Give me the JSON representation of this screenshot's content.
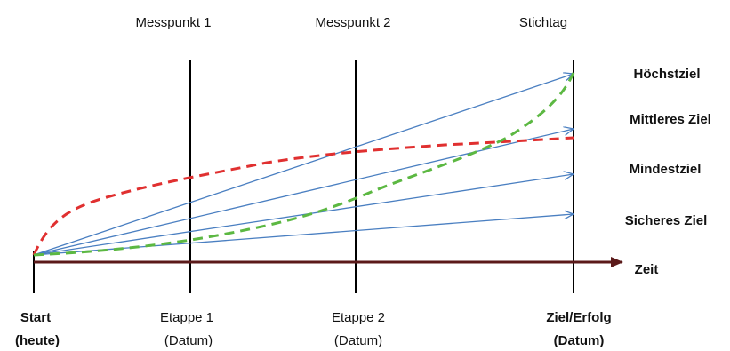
{
  "top_labels": {
    "checkpoint1": "Messpunkt 1",
    "checkpoint2": "Messpunkt 2",
    "deadline": "Stichtag"
  },
  "goals": {
    "highest": "Höchstziel",
    "medium": "Mittleres Ziel",
    "minimum": "Mindestziel",
    "safe": "Sicheres Ziel"
  },
  "axis_label": "Zeit",
  "bottom_labels": {
    "start_line1": "Start",
    "start_line2": "(heute)",
    "stage1_line1": "Etappe 1",
    "stage1_line2": "(Datum)",
    "stage2_line1": "Etappe 2",
    "stage2_line2": "(Datum)",
    "goal_line1": "Ziel/Erfolg",
    "goal_line2": "(Datum)"
  },
  "colors": {
    "axis": "#5b1a1a",
    "vertical_lines": "#000000",
    "goal_arrows": "#4a7fc1",
    "red_curve": "#e03030",
    "green_curve": "#5cb842"
  }
}
